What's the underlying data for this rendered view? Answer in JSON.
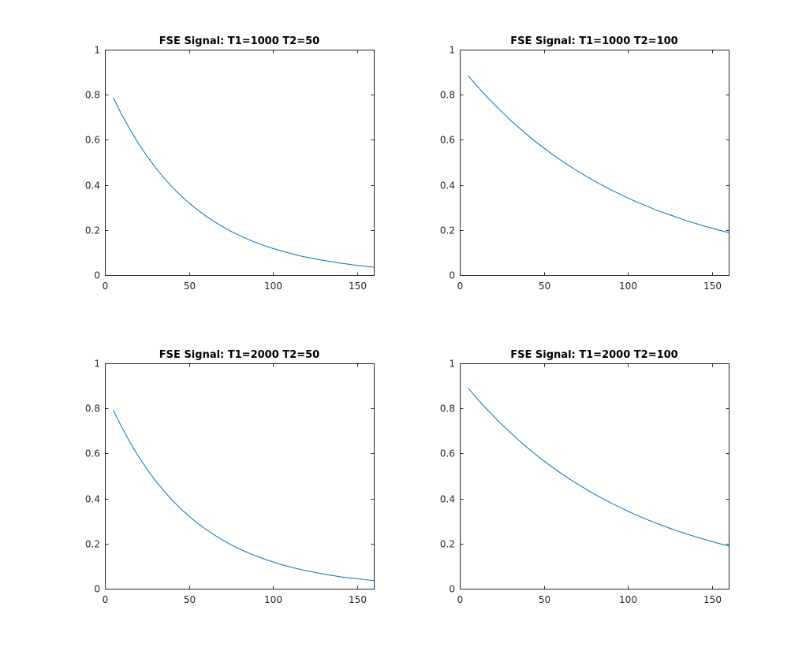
{
  "chart_data": [
    {
      "type": "line",
      "title": "FSE Signal: T1=1000 T2=50",
      "xlabel": "",
      "ylabel": "",
      "xlim": [
        0,
        160
      ],
      "ylim": [
        0,
        1
      ],
      "xticks": [
        0,
        50,
        100,
        150
      ],
      "yticks": [
        0,
        0.2,
        0.4,
        0.6,
        0.8,
        1
      ],
      "xtick_labels": [
        "0",
        "50",
        "100",
        "150"
      ],
      "ytick_labels": [
        "0",
        "0.2",
        "0.4",
        "0.6",
        "0.8",
        "1"
      ],
      "grid": false,
      "series": [
        {
          "color": "#0072BD",
          "x": [
            5,
            10,
            15,
            20,
            25,
            30,
            35,
            40,
            45,
            50,
            55,
            60,
            65,
            70,
            75,
            80,
            85,
            90,
            95,
            100,
            105,
            110,
            115,
            120,
            125,
            130,
            135,
            140,
            145,
            150,
            155,
            160
          ],
          "y": [
            0.787,
            0.712,
            0.645,
            0.583,
            0.528,
            0.478,
            0.432,
            0.391,
            0.354,
            0.32,
            0.29,
            0.262,
            0.237,
            0.215,
            0.194,
            0.176,
            0.159,
            0.144,
            0.13,
            0.118,
            0.107,
            0.097,
            0.087,
            0.079,
            0.072,
            0.065,
            0.059,
            0.053,
            0.048,
            0.043,
            0.039,
            0.035
          ]
        }
      ]
    },
    {
      "type": "line",
      "title": "FSE Signal: T1=1000 T2=100",
      "xlabel": "",
      "ylabel": "",
      "xlim": [
        0,
        160
      ],
      "ylim": [
        0,
        1
      ],
      "xticks": [
        0,
        50,
        100,
        150
      ],
      "yticks": [
        0,
        0.2,
        0.4,
        0.6,
        0.8,
        1
      ],
      "xtick_labels": [
        "0",
        "50",
        "100",
        "150"
      ],
      "ytick_labels": [
        "0",
        "0.2",
        "0.4",
        "0.6",
        "0.8",
        "1"
      ],
      "grid": false,
      "series": [
        {
          "color": "#0072BD",
          "x": [
            5,
            10,
            15,
            20,
            25,
            30,
            35,
            40,
            45,
            50,
            55,
            60,
            65,
            70,
            75,
            80,
            85,
            90,
            95,
            100,
            105,
            110,
            115,
            120,
            125,
            130,
            135,
            140,
            145,
            150,
            155,
            160
          ],
          "y": [
            0.884,
            0.841,
            0.8,
            0.761,
            0.724,
            0.688,
            0.655,
            0.623,
            0.592,
            0.564,
            0.536,
            0.51,
            0.485,
            0.462,
            0.439,
            0.418,
            0.397,
            0.378,
            0.36,
            0.342,
            0.325,
            0.31,
            0.294,
            0.28,
            0.267,
            0.254,
            0.241,
            0.23,
            0.218,
            0.208,
            0.198,
            0.188
          ]
        }
      ]
    },
    {
      "type": "line",
      "title": "FSE Signal: T1=2000 T2=50",
      "xlabel": "",
      "ylabel": "",
      "xlim": [
        0,
        160
      ],
      "ylim": [
        0,
        1
      ],
      "xticks": [
        0,
        50,
        100,
        150
      ],
      "yticks": [
        0,
        0.2,
        0.4,
        0.6,
        0.8,
        1
      ],
      "xtick_labels": [
        "0",
        "50",
        "100",
        "150"
      ],
      "ytick_labels": [
        "0",
        "0.2",
        "0.4",
        "0.6",
        "0.8",
        "1"
      ],
      "grid": false,
      "series": [
        {
          "color": "#0072BD",
          "x": [
            5,
            10,
            15,
            20,
            25,
            30,
            35,
            40,
            45,
            50,
            55,
            60,
            65,
            70,
            75,
            80,
            85,
            90,
            95,
            100,
            105,
            110,
            115,
            120,
            125,
            130,
            135,
            140,
            145,
            150,
            155,
            160
          ],
          "y": [
            0.792,
            0.717,
            0.648,
            0.587,
            0.531,
            0.48,
            0.435,
            0.393,
            0.356,
            0.322,
            0.291,
            0.264,
            0.239,
            0.216,
            0.195,
            0.177,
            0.16,
            0.145,
            0.131,
            0.119,
            0.107,
            0.097,
            0.088,
            0.08,
            0.072,
            0.065,
            0.059,
            0.053,
            0.048,
            0.044,
            0.04,
            0.036
          ]
        }
      ]
    },
    {
      "type": "line",
      "title": "FSE Signal: T1=2000 T2=100",
      "xlabel": "",
      "ylabel": "",
      "xlim": [
        0,
        160
      ],
      "ylim": [
        0,
        1
      ],
      "xticks": [
        0,
        50,
        100,
        150
      ],
      "yticks": [
        0,
        0.2,
        0.4,
        0.6,
        0.8,
        1
      ],
      "xtick_labels": [
        "0",
        "50",
        "100",
        "150"
      ],
      "ytick_labels": [
        "0",
        "0.2",
        "0.4",
        "0.6",
        "0.8",
        "1"
      ],
      "grid": false,
      "series": [
        {
          "color": "#0072BD",
          "x": [
            5,
            10,
            15,
            20,
            25,
            30,
            35,
            40,
            45,
            50,
            55,
            60,
            65,
            70,
            75,
            80,
            85,
            90,
            95,
            100,
            105,
            110,
            115,
            120,
            125,
            130,
            135,
            140,
            145,
            150,
            155,
            160
          ],
          "y": [
            0.89,
            0.846,
            0.805,
            0.766,
            0.728,
            0.693,
            0.659,
            0.627,
            0.596,
            0.567,
            0.54,
            0.513,
            0.488,
            0.465,
            0.442,
            0.42,
            0.4,
            0.38,
            0.362,
            0.344,
            0.327,
            0.311,
            0.296,
            0.282,
            0.268,
            0.255,
            0.243,
            0.231,
            0.22,
            0.209,
            0.199,
            0.189
          ]
        }
      ]
    }
  ]
}
